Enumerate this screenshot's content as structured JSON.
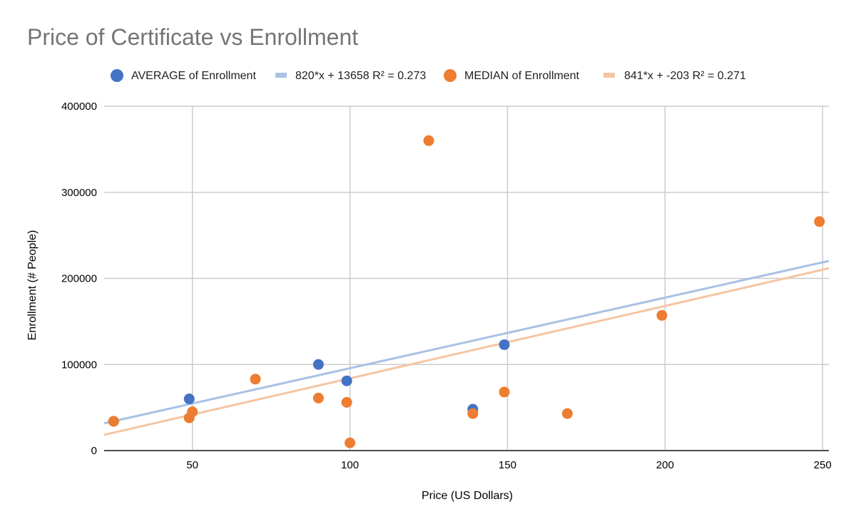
{
  "chart_data": {
    "type": "scatter",
    "title": "Price of Certificate vs Enrollment",
    "xlabel": "Price (US Dollars)",
    "ylabel": "Enrollment (# People)",
    "xlim": [
      22,
      252
    ],
    "ylim": [
      0,
      400000
    ],
    "x_ticks": [
      50,
      100,
      150,
      200,
      250
    ],
    "y_ticks": [
      0,
      100000,
      200000,
      300000,
      400000
    ],
    "grid": true,
    "legend_position": "top",
    "series": [
      {
        "name": "AVERAGE of Enrollment",
        "color": "#4472c4",
        "trendline": {
          "label": "820*x + 13658 R² = 0.273",
          "slope": 820,
          "intercept": 13658,
          "color": "#a8c1e5"
        },
        "points": [
          {
            "x": 25,
            "y": 34000
          },
          {
            "x": 49,
            "y": 60000
          },
          {
            "x": 90,
            "y": 100000
          },
          {
            "x": 99,
            "y": 81000
          },
          {
            "x": 139,
            "y": 48000
          },
          {
            "x": 149,
            "y": 123000
          }
        ]
      },
      {
        "name": "MEDIAN of Enrollment",
        "color": "#ed7d31",
        "trendline": {
          "label": "841*x + -203 R² = 0.271",
          "slope": 841,
          "intercept": -203,
          "color": "#f5c5a3"
        },
        "points": [
          {
            "x": 25,
            "y": 34000
          },
          {
            "x": 49,
            "y": 38000
          },
          {
            "x": 50,
            "y": 45000
          },
          {
            "x": 70,
            "y": 83000
          },
          {
            "x": 90,
            "y": 61000
          },
          {
            "x": 99,
            "y": 56000
          },
          {
            "x": 100,
            "y": 9000
          },
          {
            "x": 125,
            "y": 360000
          },
          {
            "x": 139,
            "y": 43000
          },
          {
            "x": 149,
            "y": 68000
          },
          {
            "x": 169,
            "y": 43000
          },
          {
            "x": 199,
            "y": 157000
          },
          {
            "x": 249,
            "y": 266000
          }
        ]
      }
    ]
  }
}
